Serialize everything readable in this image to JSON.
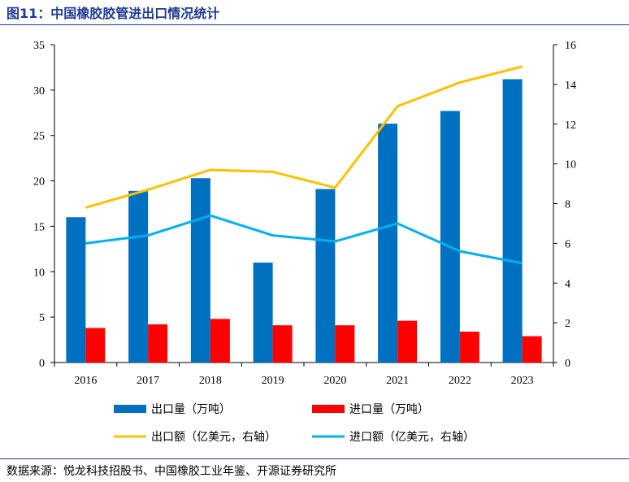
{
  "figure": {
    "title": "图11：中国橡胶胶管进出口情况统计",
    "source": "数据来源：悦龙科技招股书、中国橡胶工业年鉴、开源证券研究所"
  },
  "chart_data": {
    "type": "bar",
    "categories": [
      "2016",
      "2017",
      "2018",
      "2019",
      "2020",
      "2021",
      "2022",
      "2023"
    ],
    "series": [
      {
        "name": "出口量（万吨）",
        "type": "bar",
        "axis": "left",
        "color": "#0070c0",
        "values": [
          16.0,
          18.9,
          20.3,
          11.0,
          19.1,
          26.3,
          27.7,
          31.2
        ]
      },
      {
        "name": "进口量（万吨）",
        "type": "bar",
        "axis": "left",
        "color": "#ff0000",
        "values": [
          3.8,
          4.2,
          4.8,
          4.1,
          4.1,
          4.6,
          3.4,
          2.9
        ]
      },
      {
        "name": "出口额（亿美元，右轴）",
        "type": "line",
        "axis": "right",
        "color": "#ffc000",
        "values": [
          7.8,
          8.7,
          9.7,
          9.6,
          8.8,
          12.9,
          14.1,
          14.9
        ]
      },
      {
        "name": "进口额（亿美元，右轴）",
        "type": "line",
        "axis": "right",
        "color": "#00b0f0",
        "values": [
          6.0,
          6.4,
          7.4,
          6.4,
          6.1,
          7.0,
          5.6,
          5.0
        ]
      }
    ],
    "left_axis": {
      "ylim": [
        0,
        35
      ],
      "ticks": [
        "0",
        "5",
        "10",
        "15",
        "20",
        "25",
        "30",
        "35"
      ]
    },
    "right_axis": {
      "ylim": [
        0,
        16
      ],
      "ticks": [
        "0",
        "2",
        "4",
        "6",
        "8",
        "10",
        "12",
        "14",
        "16"
      ]
    },
    "grid": false,
    "legend_position": "bottom"
  }
}
